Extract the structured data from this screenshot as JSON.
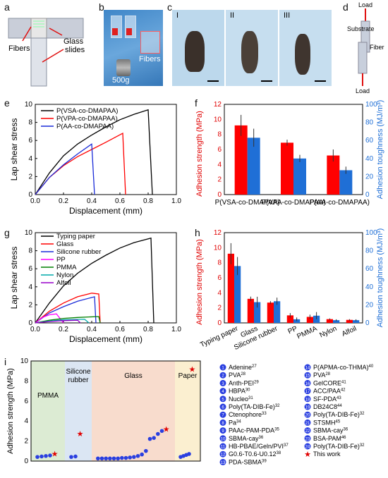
{
  "panel_letters": [
    "a",
    "b",
    "c",
    "d",
    "e",
    "f",
    "g",
    "h",
    "i"
  ],
  "panel_a": {
    "label_fibers": "Fibers",
    "label_glass": "Glass",
    "label_slides": "slides"
  },
  "panel_b": {
    "weight_label": "500g",
    "fibers_label": "Fibers"
  },
  "panel_c": {
    "labels": [
      "I",
      "II",
      "III"
    ]
  },
  "panel_d": {
    "load_top": "Load",
    "load_bottom": "Load",
    "substrate": "Substrate",
    "fiber": "Fiber"
  },
  "colors": {
    "red": "#ff0000",
    "blue": "#1f6fd6",
    "darkblue": "#1a2bd8",
    "black": "#000000",
    "star": "#e00000",
    "point": "#2a3fe0"
  },
  "chart_data": [
    {
      "id": "e",
      "type": "line",
      "xlabel": "Displacement (mm)",
      "ylabel": "Lap shear stress",
      "xlim": [
        0,
        1.0
      ],
      "ylim": [
        0,
        10
      ],
      "xticks": [
        "0.0",
        "0.2",
        "0.4",
        "0.6",
        "0.8",
        "1.0"
      ],
      "yticks": [
        "0",
        "2",
        "4",
        "6",
        "8",
        "10"
      ],
      "series": [
        {
          "name": "P(VSA-co-DMAPAA)",
          "color": "#000000",
          "points": [
            [
              0,
              0
            ],
            [
              0.1,
              2.4
            ],
            [
              0.2,
              4.3
            ],
            [
              0.3,
              5.6
            ],
            [
              0.4,
              6.6
            ],
            [
              0.5,
              7.5
            ],
            [
              0.6,
              8.3
            ],
            [
              0.7,
              8.9
            ],
            [
              0.8,
              9.4
            ],
            [
              0.83,
              0
            ]
          ]
        },
        {
          "name": "P(VPA-co-DMAPAA)",
          "color": "#ff0000",
          "points": [
            [
              0,
              0
            ],
            [
              0.1,
              1.9
            ],
            [
              0.2,
              3.2
            ],
            [
              0.3,
              4.2
            ],
            [
              0.4,
              5.0
            ],
            [
              0.5,
              5.8
            ],
            [
              0.62,
              6.8
            ],
            [
              0.64,
              0
            ]
          ]
        },
        {
          "name": "P(AA-co-DMAPAA)",
          "color": "#1a2bd8",
          "points": [
            [
              0,
              0
            ],
            [
              0.1,
              1.9
            ],
            [
              0.2,
              3.3
            ],
            [
              0.3,
              4.5
            ],
            [
              0.4,
              5.6
            ],
            [
              0.42,
              0
            ]
          ]
        }
      ]
    },
    {
      "id": "f",
      "type": "bar",
      "ylabel_left": "Adhesion strength (MPa)",
      "ylabel_right": "Adhesion toughness (MJ/m³)",
      "ylim_left": [
        0,
        12
      ],
      "ylim_right": [
        0,
        100
      ],
      "yticks_left": [
        "0",
        "2",
        "4",
        "6",
        "8",
        "10",
        "12"
      ],
      "yticks_right": [
        "0",
        "20",
        "40",
        "60",
        "80",
        "100"
      ],
      "categories": [
        "P(VSA-co-DMAPAA)",
        "P(VPA-co-DMAPAA)",
        "P(AA-co-DMAPAA)"
      ],
      "strength": [
        9.2,
        6.9,
        5.2
      ],
      "strength_err": [
        1.4,
        0.4,
        0.8
      ],
      "toughness": [
        63,
        40,
        27
      ],
      "toughness_err": [
        10,
        4,
        4
      ]
    },
    {
      "id": "g",
      "type": "line",
      "xlabel": "Displacement (mm)",
      "ylabel": "Lap shear stress",
      "xlim": [
        0,
        1.0
      ],
      "ylim": [
        0,
        10
      ],
      "xticks": [
        "0.0",
        "0.2",
        "0.4",
        "0.6",
        "0.8",
        "1.0"
      ],
      "yticks": [
        "0",
        "2",
        "4",
        "6",
        "8",
        "10"
      ],
      "series": [
        {
          "name": "Typing paper",
          "color": "#000000",
          "points": [
            [
              0,
              0
            ],
            [
              0.1,
              2.2
            ],
            [
              0.2,
              4.1
            ],
            [
              0.3,
              5.5
            ],
            [
              0.4,
              6.6
            ],
            [
              0.5,
              7.5
            ],
            [
              0.6,
              8.3
            ],
            [
              0.7,
              8.9
            ],
            [
              0.82,
              9.4
            ],
            [
              0.84,
              0
            ]
          ]
        },
        {
          "name": "Glass",
          "color": "#ff0000",
          "points": [
            [
              0,
              0
            ],
            [
              0.1,
              1.3
            ],
            [
              0.2,
              2.2
            ],
            [
              0.3,
              2.9
            ],
            [
              0.4,
              3.3
            ],
            [
              0.45,
              3.2
            ],
            [
              0.46,
              0
            ]
          ]
        },
        {
          "name": "Silicone rubber",
          "color": "#1a2bd8",
          "points": [
            [
              0,
              0
            ],
            [
              0.1,
              1.1
            ],
            [
              0.2,
              1.8
            ],
            [
              0.3,
              2.4
            ],
            [
              0.42,
              2.9
            ],
            [
              0.43,
              0
            ]
          ]
        },
        {
          "name": "PP",
          "color": "#ff00ff",
          "points": [
            [
              0,
              0
            ],
            [
              0.05,
              0.6
            ],
            [
              0.1,
              0.9
            ],
            [
              0.15,
              1.0
            ],
            [
              0.2,
              0
            ]
          ]
        },
        {
          "name": "PMMA",
          "color": "#008000",
          "points": [
            [
              0,
              0
            ],
            [
              0.1,
              0.3
            ],
            [
              0.2,
              0.5
            ],
            [
              0.3,
              0.6
            ],
            [
              0.45,
              0.7
            ],
            [
              0.46,
              0
            ]
          ]
        },
        {
          "name": "Nylon",
          "color": "#00aaaa",
          "points": [
            [
              0,
              0
            ],
            [
              0.1,
              0.2
            ],
            [
              0.2,
              0.35
            ],
            [
              0.35,
              0.4
            ],
            [
              0.38,
              0
            ]
          ]
        },
        {
          "name": "Alfoil",
          "color": "#9900cc",
          "points": [
            [
              0,
              0
            ],
            [
              0.1,
              0.15
            ],
            [
              0.2,
              0.25
            ],
            [
              0.3,
              0.3
            ],
            [
              0.32,
              0
            ]
          ]
        }
      ]
    },
    {
      "id": "h",
      "type": "bar",
      "ylabel_left": "Adhesion strength (MPa)",
      "ylabel_right": "Adhesion toughness (MJ/m³)",
      "ylim_left": [
        0,
        12
      ],
      "ylim_right": [
        0,
        100
      ],
      "yticks_left": [
        "0",
        "2",
        "4",
        "6",
        "8",
        "10",
        "12"
      ],
      "yticks_right": [
        "0",
        "20",
        "40",
        "60",
        "80",
        "100"
      ],
      "categories": [
        "Typing paper",
        "Glass",
        "Silicone rubber",
        "PP",
        "PMMA",
        "Nylon",
        "Alfoil"
      ],
      "strength": [
        9.2,
        3.2,
        2.7,
        1.0,
        0.8,
        0.5,
        0.4
      ],
      "strength_err": [
        1.4,
        0.3,
        0.2,
        0.3,
        0.3,
        0.1,
        0.1
      ],
      "toughness": [
        63,
        23,
        24,
        4,
        8,
        3,
        3
      ],
      "toughness_err": [
        10,
        6,
        4,
        2,
        4,
        1,
        1
      ]
    },
    {
      "id": "i",
      "type": "scatter",
      "ylabel": "Adhesion strength (MPa)",
      "ylim": [
        0,
        10
      ],
      "yticks": [
        "0",
        "2",
        "4",
        "6",
        "8",
        "10"
      ],
      "regions": [
        {
          "name": "PMMA",
          "color": "#dcebd3"
        },
        {
          "name": "Silicone rubber",
          "color": "#dbe6f3"
        },
        {
          "name": "Glass",
          "color": "#f8dccd"
        },
        {
          "name": "Paper",
          "color": "#fbefd0"
        }
      ],
      "groups": [
        {
          "region": 0,
          "ids": [
            "1",
            "2",
            "3",
            "4"
          ],
          "values": [
            0.2,
            0.25,
            0.3,
            0.35
          ],
          "star": 0.75
        },
        {
          "region": 1,
          "ids": [
            "5",
            "6"
          ],
          "values": [
            0.2,
            0.25
          ],
          "star": 2.75
        },
        {
          "region": 2,
          "ids": [
            "7",
            "8",
            "9",
            "10",
            "11",
            "12",
            "13",
            "14",
            "15",
            "16",
            "17",
            "18",
            "19",
            "20",
            "21",
            "22",
            "23"
          ],
          "values": [
            0.05,
            0.05,
            0.05,
            0.05,
            0.05,
            0.05,
            0.1,
            0.1,
            0.15,
            0.2,
            0.3,
            0.45,
            0.8,
            2.0,
            2.1,
            2.5,
            2.8
          ],
          "star": 3.2
        },
        {
          "region": 3,
          "ids": [
            "24",
            "25",
            "26",
            "27"
          ],
          "values": [
            0.2,
            0.3,
            0.4,
            0.5
          ],
          "star": 9.2
        }
      ],
      "legend_left": [
        {
          "id": "1",
          "text": "Adenine",
          "ref": "27"
        },
        {
          "id": "2",
          "text": "PVA",
          "ref": "28"
        },
        {
          "id": "3",
          "text": "Anth-PEI",
          "ref": "29"
        },
        {
          "id": "4",
          "text": "HBPA",
          "ref": "30"
        },
        {
          "id": "5",
          "text": "Nucleo",
          "ref": "31"
        },
        {
          "id": "6",
          "text": "Poly(TA-DIB-Fe)",
          "ref": "32"
        },
        {
          "id": "7",
          "text": "Ctenophore",
          "ref": "33"
        },
        {
          "id": "8",
          "text": "Pa",
          "ref": "34"
        },
        {
          "id": "9",
          "text": "PAAc-PAM-PDA",
          "ref": "35"
        },
        {
          "id": "10",
          "text": "SBMA-cay",
          "ref": "36"
        },
        {
          "id": "11",
          "text": "HB-PBAE/Geln/PVI",
          "ref": "37"
        },
        {
          "id": "12",
          "text": "G0.6-T0.6-U0.12",
          "ref": "38"
        },
        {
          "id": "13",
          "text": "PDA-SBMA",
          "ref": "39"
        }
      ],
      "legend_right": [
        {
          "id": "14",
          "text": "P(APMA-co-THMA)",
          "ref": "40"
        },
        {
          "id": "15",
          "text": "PVA",
          "ref": "28"
        },
        {
          "id": "16",
          "text": "GelCORE",
          "ref": "41"
        },
        {
          "id": "17",
          "text": "ACC/PAA",
          "ref": "42"
        },
        {
          "id": "18",
          "text": "SF-PDA",
          "ref": "43"
        },
        {
          "id": "19",
          "text": "DB24C8",
          "ref": "44"
        },
        {
          "id": "20",
          "text": "Poly(TA-DIB-Fe)",
          "ref": "32"
        },
        {
          "id": "21",
          "text": "STSMH",
          "ref": "45"
        },
        {
          "id": "22",
          "text": "SBMA-cay",
          "ref": "36"
        },
        {
          "id": "23",
          "text": "BSA-PAM",
          "ref": "46"
        },
        {
          "id": "24",
          "text": "Poly(TA-DIB-Fe)",
          "ref": "32"
        }
      ],
      "this_work_label": "This work"
    }
  ]
}
